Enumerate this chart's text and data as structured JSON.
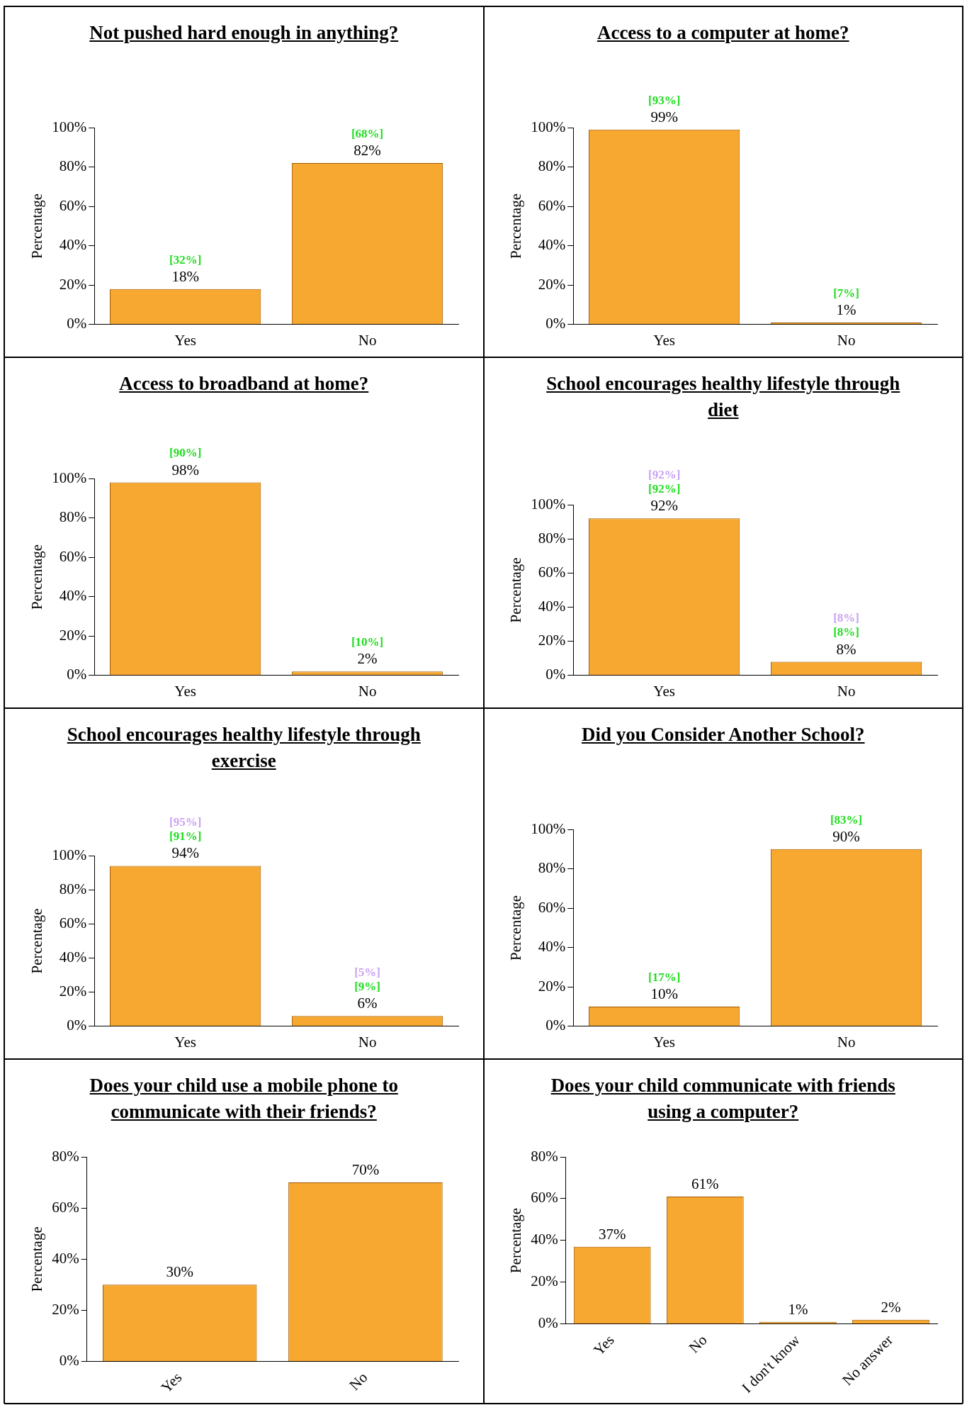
{
  "chart_data": [
    {
      "type": "bar",
      "title": "Not pushed hard enough in anything?",
      "ylabel": "Percentage",
      "categories": [
        "Yes",
        "No"
      ],
      "values": [
        18,
        82
      ],
      "value_labels": [
        "18%",
        "82%"
      ],
      "color": "#f7a830",
      "ylim": [
        0,
        100
      ],
      "yticks": [
        {
          "value": 0,
          "label": "0%"
        },
        {
          "value": 20,
          "label": "20%"
        },
        {
          "value": 40,
          "label": "40%"
        },
        {
          "value": 60,
          "label": "60%"
        },
        {
          "value": 80,
          "label": "80%"
        },
        {
          "value": 100,
          "label": "100%"
        }
      ],
      "grid": false,
      "legend": false,
      "annotations": [
        "[32%]",
        "[68%]"
      ]
    },
    {
      "type": "bar",
      "title": "Access to a computer at home?",
      "ylabel": "Percentage",
      "categories": [
        "Yes",
        "No"
      ],
      "values": [
        99,
        1
      ],
      "value_labels": [
        "99%",
        "1%"
      ],
      "color": "#f7a830",
      "ylim": [
        0,
        100
      ],
      "yticks": [
        {
          "value": 0,
          "label": "0%"
        },
        {
          "value": 20,
          "label": "20%"
        },
        {
          "value": 40,
          "label": "40%"
        },
        {
          "value": 60,
          "label": "60%"
        },
        {
          "value": 80,
          "label": "80%"
        },
        {
          "value": 100,
          "label": "100%"
        }
      ],
      "grid": false,
      "legend": false,
      "annotations": [
        "[93%]",
        "[7%]"
      ]
    },
    {
      "type": "bar",
      "title": "Access to broadband at home?",
      "ylabel": "Percentage",
      "categories": [
        "Yes",
        "No"
      ],
      "values": [
        98,
        2
      ],
      "value_labels": [
        "98%",
        "2%"
      ],
      "color": "#f7a830",
      "ylim": [
        0,
        100
      ],
      "yticks": [
        {
          "value": 0,
          "label": "0%"
        },
        {
          "value": 20,
          "label": "20%"
        },
        {
          "value": 40,
          "label": "40%"
        },
        {
          "value": 60,
          "label": "60%"
        },
        {
          "value": 80,
          "label": "80%"
        },
        {
          "value": 100,
          "label": "100%"
        }
      ],
      "grid": false,
      "legend": false,
      "annotations": [
        "[90%]",
        "[10%]"
      ]
    },
    {
      "type": "bar",
      "title": "School encourages healthy lifestyle through diet",
      "ylabel": "Percentage",
      "categories": [
        "Yes",
        "No"
      ],
      "values": [
        92,
        8
      ],
      "value_labels": [
        "92%",
        "8%"
      ],
      "color": "#f7a830",
      "ylim": [
        0,
        100
      ],
      "yticks": [
        {
          "value": 0,
          "label": "0%"
        },
        {
          "value": 20,
          "label": "20%"
        },
        {
          "value": 40,
          "label": "40%"
        },
        {
          "value": 60,
          "label": "60%"
        },
        {
          "value": 80,
          "label": "80%"
        },
        {
          "value": 100,
          "label": "100%"
        }
      ],
      "grid": false,
      "legend": false,
      "annotations": [
        "[92%]",
        "[92%]",
        "[8%]",
        "[8%]"
      ]
    },
    {
      "type": "bar",
      "title": "School encourages healthy lifestyle through exercise",
      "ylabel": "Percentage",
      "categories": [
        "Yes",
        "No"
      ],
      "values": [
        94,
        6
      ],
      "value_labels": [
        "94%",
        "6%"
      ],
      "color": "#f7a830",
      "ylim": [
        0,
        100
      ],
      "yticks": [
        {
          "value": 0,
          "label": "0%"
        },
        {
          "value": 20,
          "label": "20%"
        },
        {
          "value": 40,
          "label": "40%"
        },
        {
          "value": 60,
          "label": "60%"
        },
        {
          "value": 80,
          "label": "80%"
        },
        {
          "value": 100,
          "label": "100%"
        }
      ],
      "grid": false,
      "legend": false,
      "annotations": [
        "[95%]",
        "[91%]",
        "[5%]",
        "[9%]"
      ]
    },
    {
      "type": "bar",
      "title": "Did you Consider Another School?",
      "ylabel": "Percentage",
      "categories": [
        "Yes",
        "No"
      ],
      "values": [
        10,
        90
      ],
      "value_labels": [
        "10%",
        "90%"
      ],
      "color": "#f7a830",
      "ylim": [
        0,
        100
      ],
      "yticks": [
        {
          "value": 0,
          "label": "0%"
        },
        {
          "value": 20,
          "label": "20%"
        },
        {
          "value": 40,
          "label": "40%"
        },
        {
          "value": 60,
          "label": "60%"
        },
        {
          "value": 80,
          "label": "80%"
        },
        {
          "value": 100,
          "label": "100%"
        }
      ],
      "grid": false,
      "legend": false,
      "annotations": [
        "[17%]",
        "[83%]"
      ]
    },
    {
      "type": "bar",
      "title": "Does your child use a mobile phone to communicate with their friends?",
      "ylabel": "Percentage",
      "categories": [
        "Yes",
        "No"
      ],
      "values": [
        30,
        70
      ],
      "value_labels": [
        "30%",
        "70%"
      ],
      "color": "#f7a830",
      "ylim": [
        0,
        80
      ],
      "yticks": [
        {
          "value": 0,
          "label": "0%"
        },
        {
          "value": 20,
          "label": "20%"
        },
        {
          "value": 40,
          "label": "40%"
        },
        {
          "value": 60,
          "label": "60%"
        },
        {
          "value": 80,
          "label": "80%"
        }
      ],
      "grid": false,
      "legend": false
    },
    {
      "type": "bar",
      "title": "Does your child communicate with friends using a computer?",
      "ylabel": "Percentage",
      "categories": [
        "Yes",
        "No",
        "I don't know",
        "No answer"
      ],
      "values": [
        37,
        61,
        1,
        2
      ],
      "value_labels": [
        "37%",
        "61%",
        "1%",
        "2%"
      ],
      "color": "#f7a830",
      "ylim": [
        0,
        80
      ],
      "yticks": [
        {
          "value": 0,
          "label": "0%"
        },
        {
          "value": 20,
          "label": "20%"
        },
        {
          "value": 40,
          "label": "40%"
        },
        {
          "value": 60,
          "label": "60%"
        },
        {
          "value": 80,
          "label": "80%"
        }
      ],
      "grid": false,
      "legend": false
    }
  ]
}
